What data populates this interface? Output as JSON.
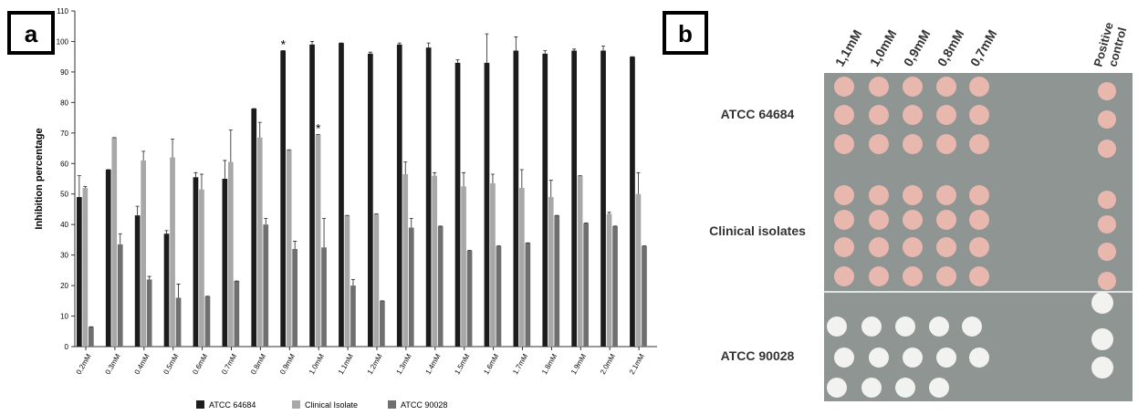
{
  "chart_data": {
    "type": "bar",
    "panel_label": "a",
    "y_label": "Inhibition percentage",
    "categories": [
      "0.2mM",
      "0.3mM",
      "0.4mM",
      "0.5mM",
      "0.6mM",
      "0.7mM",
      "0.8mM",
      "0.9mM",
      "1.0mM",
      "1.1mM",
      "1.2mM",
      "1.3mM",
      "1.4mM",
      "1.5mM",
      "1.6mM",
      "1.7mM",
      "1.8mM",
      "1.9mM",
      "2.0mM",
      "2.1mM"
    ],
    "series": [
      {
        "name": "ATCC 64684",
        "color": "#1c1c1c",
        "values": [
          49,
          58,
          43,
          37,
          55.5,
          55,
          78,
          97,
          99,
          99.5,
          96,
          99,
          98,
          93,
          93,
          97,
          96,
          97,
          97,
          95
        ],
        "errors": [
          7,
          0,
          3,
          1,
          1.5,
          6,
          0,
          0,
          1,
          0,
          0.5,
          0.5,
          1.5,
          1,
          9.5,
          4.5,
          1,
          0.5,
          1.5,
          0
        ]
      },
      {
        "name": "Clinical Isolate",
        "color": "#a8a8a8",
        "values": [
          52,
          68.5,
          61,
          62,
          51.5,
          60.5,
          68.5,
          64.5,
          69.5,
          43,
          43.5,
          56.5,
          56,
          52.5,
          53.5,
          52,
          49,
          56,
          43.5,
          50
        ],
        "errors": [
          0.5,
          0,
          3,
          6,
          5,
          10.5,
          5,
          0,
          0,
          0,
          0,
          4,
          1,
          4.5,
          3,
          6,
          5.5,
          0,
          0.5,
          7
        ]
      },
      {
        "name": "ATCC 90028",
        "color": "#6f6f6f",
        "values": [
          6.5,
          33.5,
          22,
          16,
          16.5,
          21.5,
          40,
          32,
          32.5,
          20,
          15,
          39,
          39.5,
          31.5,
          33,
          34,
          43,
          40.5,
          39.5,
          33
        ],
        "errors": [
          0,
          3.5,
          1,
          4.5,
          0,
          0,
          2,
          2.5,
          9.5,
          2,
          0,
          3,
          0,
          0,
          0,
          0,
          0,
          0,
          0,
          0
        ]
      }
    ],
    "annotations": [
      {
        "text": "*",
        "category": 7,
        "series": 0
      },
      {
        "text": "*",
        "category": 8,
        "series": 1
      }
    ],
    "ylim": [
      0,
      110
    ],
    "yticks": [
      0,
      10,
      20,
      30,
      40,
      50,
      60,
      70,
      80,
      90,
      100,
      110
    ],
    "legend": "bottom"
  },
  "panel_b": {
    "panel_label": "b",
    "columns": [
      "1,1mM",
      "1,0mM",
      "0,9mM",
      "0,8mM",
      "0,7mM"
    ],
    "control": [
      "Positive",
      "control"
    ],
    "rows": [
      "ATCC 64684",
      "Clinical isolates",
      "ATCC 90028"
    ]
  }
}
